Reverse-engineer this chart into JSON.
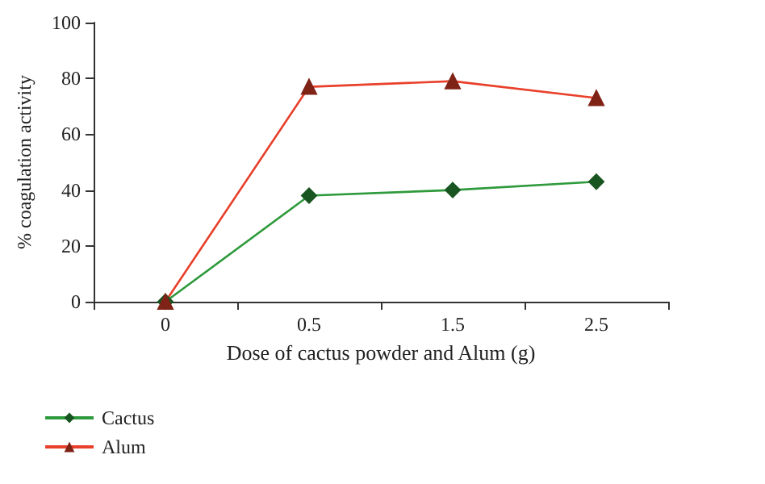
{
  "chart_data": {
    "type": "line",
    "xlabel": "Dose of cactus powder and Alum (g)",
    "ylabel": "% coagulation activity",
    "categories": [
      "0",
      "0.5",
      "1.5",
      "2.5"
    ],
    "series": [
      {
        "name": "Cactus",
        "color": "#2e9a3c",
        "marker": "diamond",
        "values": [
          0,
          38,
          40,
          43
        ]
      },
      {
        "name": "Alum",
        "color": "#e8402a",
        "marker": "triangle",
        "values": [
          0,
          77,
          79,
          73
        ]
      }
    ],
    "ylim": [
      0,
      100
    ],
    "yticks": [
      0,
      20,
      40,
      60,
      80,
      100
    ],
    "grid": false,
    "legend": "bottom left",
    "line_style": "solid"
  }
}
